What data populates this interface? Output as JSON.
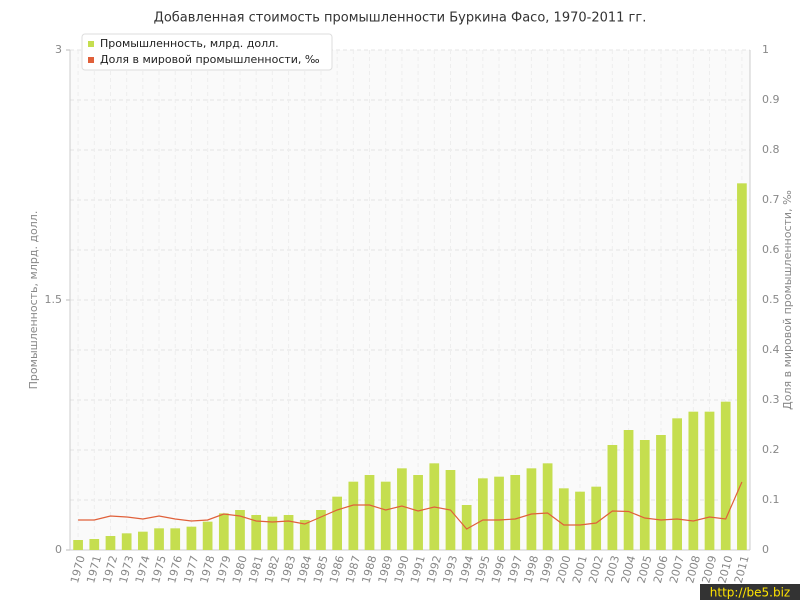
{
  "chart_data": {
    "type": "bar-line",
    "title": "Добавленная стоимость промышленности Буркина Фасо, 1970-2011 гг.",
    "y_label": "Промышленность, млрд. долл.",
    "y2_label": "Доля в мировой промышленности, ‰",
    "watermark": "http://be5.biz",
    "legend": "top-left",
    "grid": true,
    "categories": [
      "1970",
      "1971",
      "1972",
      "1973",
      "1974",
      "1975",
      "1976",
      "1977",
      "1978",
      "1979",
      "1980",
      "1981",
      "1982",
      "1983",
      "1984",
      "1985",
      "1986",
      "1987",
      "1988",
      "1989",
      "1990",
      "1991",
      "1992",
      "1993",
      "1994",
      "1995",
      "1996",
      "1997",
      "1998",
      "1999",
      "2000",
      "2001",
      "2002",
      "2003",
      "2004",
      "2005",
      "2006",
      "2007",
      "2008",
      "2009",
      "2010",
      "2011"
    ],
    "series": [
      {
        "name": "Промышленность, млрд. долл.",
        "type": "bar",
        "color": "#c5de4f",
        "values": [
          0.06,
          0.066,
          0.084,
          0.1,
          0.11,
          0.13,
          0.13,
          0.14,
          0.17,
          0.22,
          0.24,
          0.21,
          0.2,
          0.21,
          0.18,
          0.24,
          0.32,
          0.41,
          0.45,
          0.41,
          0.49,
          0.45,
          0.52,
          0.48,
          0.27,
          0.43,
          0.44,
          0.45,
          0.49,
          0.52,
          0.37,
          0.35,
          0.38,
          0.63,
          0.72,
          0.66,
          0.69,
          0.79,
          0.83,
          0.83,
          0.89,
          2.2
        ]
      },
      {
        "name": "Доля в мировой промышленности, ‰",
        "type": "line",
        "axis": "y2",
        "color": "#e0603a",
        "values": [
          0.06,
          0.06,
          0.068,
          0.066,
          0.062,
          0.068,
          0.062,
          0.058,
          0.06,
          0.072,
          0.068,
          0.058,
          0.056,
          0.058,
          0.052,
          0.066,
          0.08,
          0.09,
          0.09,
          0.08,
          0.088,
          0.078,
          0.086,
          0.08,
          0.042,
          0.06,
          0.06,
          0.062,
          0.072,
          0.074,
          0.05,
          0.05,
          0.054,
          0.078,
          0.077,
          0.064,
          0.06,
          0.062,
          0.058,
          0.066,
          0.062,
          0.136
        ]
      }
    ],
    "ylim": [
      0,
      3
    ],
    "yticks": [
      0,
      1.5,
      3
    ],
    "y2lim": [
      0,
      1
    ],
    "y2ticks": [
      0,
      0.1,
      0.2,
      0.3,
      0.4,
      0.5,
      0.6,
      0.7,
      0.8,
      0.9,
      1
    ]
  }
}
